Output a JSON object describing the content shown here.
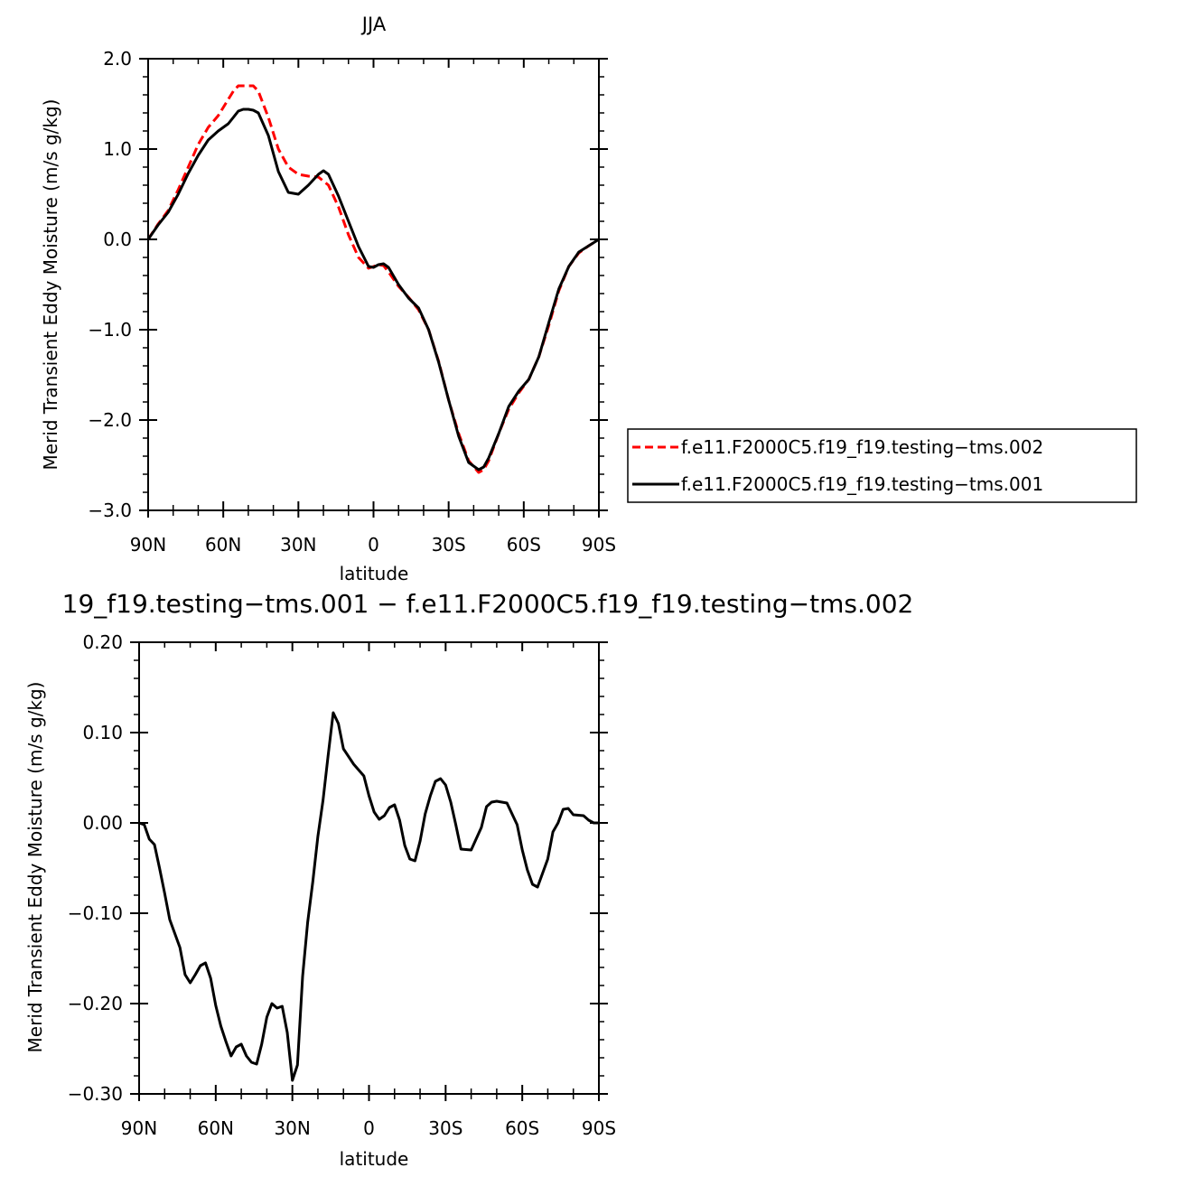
{
  "chart_data": [
    {
      "type": "line",
      "title": "JJA",
      "xlabel": "latitude",
      "ylabel": "Merid Transient Eddy Moisture (m/s g/kg)",
      "x_ticks": [
        "90N",
        "60N",
        "30N",
        "0",
        "30S",
        "60S",
        "90S"
      ],
      "y_ticks": [
        "2.0",
        "1.0",
        "0.0",
        "−1.0",
        "−2.0",
        "−3.0"
      ],
      "xlim": [
        90,
        -90
      ],
      "ylim": [
        -3.0,
        2.0
      ],
      "legend_position": "right",
      "series": [
        {
          "name": "f.e11.F2000C5.f19_f19.testing−tms.002",
          "color": "#ff0000",
          "style": "dashed",
          "x": [
            90,
            86,
            82,
            78,
            74,
            70,
            66,
            62,
            58,
            56,
            54,
            52,
            50,
            48,
            46,
            42,
            38,
            34,
            30,
            26,
            22,
            18,
            14,
            10,
            6,
            2,
            0,
            -2,
            -4,
            -6,
            -10,
            -14,
            -18,
            -22,
            -26,
            -30,
            -34,
            -38,
            -42,
            -44,
            -46,
            -50,
            -54,
            -58,
            -62,
            -66,
            -70,
            -74,
            -78,
            -82,
            -86,
            -90
          ],
          "y": [
            0.0,
            0.17,
            0.32,
            0.55,
            0.8,
            1.05,
            1.24,
            1.37,
            1.55,
            1.64,
            1.7,
            1.7,
            1.7,
            1.7,
            1.64,
            1.35,
            1.0,
            0.8,
            0.72,
            0.7,
            0.69,
            0.6,
            0.36,
            0.05,
            -0.2,
            -0.32,
            -0.3,
            -0.28,
            -0.29,
            -0.36,
            -0.52,
            -0.64,
            -0.78,
            -1.0,
            -1.35,
            -1.78,
            -2.15,
            -2.45,
            -2.58,
            -2.55,
            -2.45,
            -2.15,
            -1.88,
            -1.7,
            -1.55,
            -1.3,
            -0.95,
            -0.57,
            -0.3,
            -0.15,
            -0.07,
            0.0
          ]
        },
        {
          "name": "f.e11.F2000C5.f19_f19.testing−tms.001",
          "color": "#000000",
          "style": "solid",
          "x": [
            90,
            86,
            82,
            78,
            74,
            70,
            66,
            62,
            58,
            56,
            54,
            52,
            50,
            48,
            46,
            42,
            38,
            34,
            30,
            26,
            22,
            20,
            18,
            14,
            10,
            6,
            2,
            0,
            -2,
            -4,
            -6,
            -10,
            -14,
            -18,
            -22,
            -26,
            -30,
            -34,
            -38,
            -42,
            -44,
            -46,
            -50,
            -54,
            -58,
            -62,
            -66,
            -70,
            -74,
            -78,
            -82,
            -86,
            -90
          ],
          "y": [
            0.0,
            0.16,
            0.3,
            0.5,
            0.73,
            0.93,
            1.1,
            1.2,
            1.28,
            1.35,
            1.42,
            1.44,
            1.44,
            1.43,
            1.4,
            1.15,
            0.75,
            0.52,
            0.5,
            0.6,
            0.72,
            0.76,
            0.72,
            0.48,
            0.2,
            -0.08,
            -0.3,
            -0.31,
            -0.28,
            -0.27,
            -0.31,
            -0.5,
            -0.65,
            -0.76,
            -1.0,
            -1.36,
            -1.78,
            -2.18,
            -2.47,
            -2.55,
            -2.52,
            -2.42,
            -2.15,
            -1.85,
            -1.68,
            -1.55,
            -1.3,
            -0.92,
            -0.55,
            -0.3,
            -0.14,
            -0.07,
            0.0
          ]
        }
      ]
    },
    {
      "type": "line",
      "title": "19_f19.testing−tms.001 − f.e11.F2000C5.f19_f19.testing−tms.002",
      "xlabel": "latitude",
      "ylabel": "Merid Transient Eddy Moisture (m/s g/kg)",
      "x_ticks": [
        "90N",
        "60N",
        "30N",
        "0",
        "30S",
        "60S",
        "90S"
      ],
      "y_ticks": [
        "0.20",
        "0.10",
        "0.00",
        "−0.10",
        "−0.20",
        "−0.30"
      ],
      "xlim": [
        90,
        -90
      ],
      "ylim": [
        -0.3,
        0.2
      ],
      "series": [
        {
          "color": "#000000",
          "style": "solid",
          "x": [
            90,
            88,
            86,
            84,
            82,
            80,
            78,
            74,
            72,
            70,
            68,
            66,
            64,
            62,
            60,
            58,
            56,
            54,
            52,
            50,
            48,
            46,
            44,
            42,
            40,
            38,
            36,
            34,
            32,
            30,
            28,
            26,
            24,
            22,
            20,
            18,
            16,
            14,
            12,
            10,
            6,
            2,
            0,
            -2,
            -4,
            -6,
            -8,
            -10,
            -12,
            -14,
            -16,
            -18,
            -20,
            -22,
            -24,
            -26,
            -28,
            -30,
            -32,
            -34,
            -36,
            -40,
            -44,
            -46,
            -48,
            -50,
            -54,
            -58,
            -60,
            -62,
            -64,
            -66,
            -70,
            -72,
            -74,
            -76,
            -78,
            -80,
            -84,
            -86,
            -88,
            -90
          ],
          "y": [
            0.0,
            -0.002,
            -0.018,
            -0.024,
            -0.05,
            -0.078,
            -0.107,
            -0.138,
            -0.168,
            -0.177,
            -0.168,
            -0.158,
            -0.155,
            -0.172,
            -0.202,
            -0.225,
            -0.242,
            -0.258,
            -0.248,
            -0.245,
            -0.258,
            -0.265,
            -0.267,
            -0.245,
            -0.215,
            -0.2,
            -0.205,
            -0.203,
            -0.232,
            -0.285,
            -0.268,
            -0.17,
            -0.11,
            -0.065,
            -0.015,
            0.025,
            0.075,
            0.122,
            0.11,
            0.082,
            0.065,
            0.052,
            0.03,
            0.012,
            0.004,
            0.008,
            0.017,
            0.02,
            0.003,
            -0.025,
            -0.04,
            -0.042,
            -0.02,
            0.01,
            0.03,
            0.046,
            0.049,
            0.042,
            0.023,
            -0.002,
            -0.029,
            -0.03,
            -0.005,
            0.018,
            0.023,
            0.024,
            0.022,
            -0.002,
            -0.03,
            -0.052,
            -0.068,
            -0.071,
            -0.04,
            -0.01,
            0.0,
            0.015,
            0.016,
            0.009,
            0.008,
            0.003,
            0.0,
            0.0
          ]
        }
      ]
    }
  ]
}
